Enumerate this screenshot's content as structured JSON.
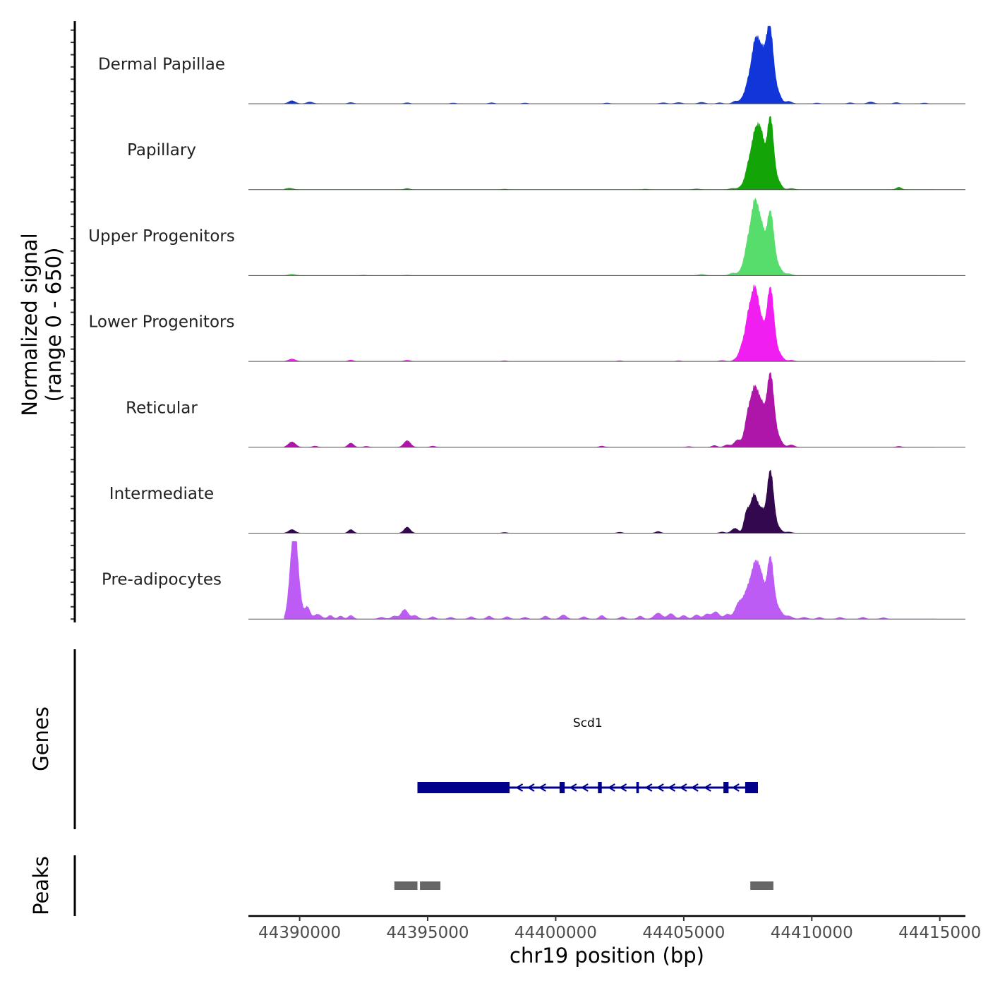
{
  "chart_data": {
    "type": "area",
    "title": "",
    "chromosome": "chr19",
    "xlabel": "chr19 position (bp)",
    "xlim": [
      44388000,
      44416000
    ],
    "x_ticks": [
      44390000,
      44395000,
      44400000,
      44405000,
      44410000,
      44415000
    ],
    "x_tick_labels": [
      "44390000",
      "44395000",
      "44400000",
      "44405000",
      "44410000",
      "44415000"
    ],
    "ylabel_line1": "Normalized signal",
    "ylabel_line2": "(range 0 - 650)",
    "ylim": [
      0,
      650
    ],
    "coverage_series": [
      {
        "name": "Dermal Papillae",
        "color": "#1035d8",
        "peaks": [
          [
            44389700,
            25,
            130
          ],
          [
            44390400,
            15,
            120
          ],
          [
            44392000,
            10,
            100
          ],
          [
            44394200,
            8,
            100
          ],
          [
            44396000,
            6,
            100
          ],
          [
            44397500,
            8,
            100
          ],
          [
            44398800,
            6,
            100
          ],
          [
            44402000,
            6,
            100
          ],
          [
            44404200,
            8,
            120
          ],
          [
            44404800,
            10,
            120
          ],
          [
            44405700,
            12,
            120
          ],
          [
            44406400,
            8,
            100
          ],
          [
            44407000,
            20,
            100
          ],
          [
            44407300,
            40,
            120
          ],
          [
            44407500,
            110,
            110
          ],
          [
            44407800,
            520,
            160
          ],
          [
            44408050,
            250,
            120
          ],
          [
            44408350,
            650,
            150
          ],
          [
            44408700,
            70,
            120
          ],
          [
            44409100,
            20,
            120
          ],
          [
            44410200,
            6,
            100
          ],
          [
            44411500,
            8,
            100
          ],
          [
            44412300,
            15,
            120
          ],
          [
            44413300,
            10,
            100
          ],
          [
            44414400,
            6,
            100
          ]
        ]
      },
      {
        "name": "Papillary",
        "color": "#13a507",
        "peaks": [
          [
            44389600,
            12,
            140
          ],
          [
            44394200,
            10,
            100
          ],
          [
            44398000,
            4,
            100
          ],
          [
            44403500,
            4,
            100
          ],
          [
            44405500,
            6,
            120
          ],
          [
            44406900,
            10,
            120
          ],
          [
            44407300,
            30,
            140
          ],
          [
            44407500,
            110,
            110
          ],
          [
            44407800,
            480,
            170
          ],
          [
            44408050,
            300,
            120
          ],
          [
            44408380,
            600,
            130
          ],
          [
            44408700,
            60,
            120
          ],
          [
            44409200,
            10,
            120
          ],
          [
            44413400,
            20,
            100
          ]
        ]
      },
      {
        "name": "Upper Progenitors",
        "color": "#57dd6c",
        "peaks": [
          [
            44389700,
            12,
            140
          ],
          [
            44392500,
            4,
            100
          ],
          [
            44394200,
            4,
            100
          ],
          [
            44405700,
            10,
            140
          ],
          [
            44406900,
            20,
            120
          ],
          [
            44407300,
            50,
            140
          ],
          [
            44407500,
            200,
            120
          ],
          [
            44407780,
            600,
            150
          ],
          [
            44408050,
            300,
            120
          ],
          [
            44408380,
            530,
            140
          ],
          [
            44408720,
            60,
            130
          ],
          [
            44409100,
            15,
            120
          ]
        ]
      },
      {
        "name": "Lower Progenitors",
        "color": "#f01ef0",
        "peaks": [
          [
            44389700,
            20,
            140
          ],
          [
            44392000,
            12,
            100
          ],
          [
            44394200,
            10,
            120
          ],
          [
            44398000,
            6,
            100
          ],
          [
            44402500,
            6,
            100
          ],
          [
            44404800,
            6,
            100
          ],
          [
            44406500,
            8,
            120
          ],
          [
            44407050,
            20,
            110
          ],
          [
            44407250,
            90,
            100
          ],
          [
            44407500,
            300,
            130
          ],
          [
            44407780,
            580,
            150
          ],
          [
            44408050,
            220,
            120
          ],
          [
            44408380,
            610,
            140
          ],
          [
            44408720,
            60,
            140
          ],
          [
            44409200,
            10,
            120
          ]
        ]
      },
      {
        "name": "Reticular",
        "color": "#ad16a9",
        "peaks": [
          [
            44389700,
            45,
            140
          ],
          [
            44390600,
            10,
            100
          ],
          [
            44392000,
            35,
            110
          ],
          [
            44392600,
            8,
            100
          ],
          [
            44394200,
            55,
            130
          ],
          [
            44395200,
            10,
            100
          ],
          [
            44401800,
            10,
            100
          ],
          [
            44405200,
            6,
            100
          ],
          [
            44406200,
            15,
            100
          ],
          [
            44406700,
            20,
            120
          ],
          [
            44407100,
            60,
            130
          ],
          [
            44407500,
            230,
            130
          ],
          [
            44407780,
            470,
            150
          ],
          [
            44408050,
            260,
            120
          ],
          [
            44408380,
            610,
            140
          ],
          [
            44408700,
            70,
            140
          ],
          [
            44409200,
            20,
            120
          ],
          [
            44413400,
            8,
            100
          ]
        ]
      },
      {
        "name": "Intermediate",
        "color": "#33084f",
        "peaks": [
          [
            44389700,
            30,
            130
          ],
          [
            44392000,
            30,
            100
          ],
          [
            44394200,
            50,
            120
          ],
          [
            44398000,
            6,
            100
          ],
          [
            44402500,
            8,
            100
          ],
          [
            44404000,
            14,
            100
          ],
          [
            44406500,
            10,
            100
          ],
          [
            44407000,
            40,
            130
          ],
          [
            44407450,
            150,
            100
          ],
          [
            44407750,
            320,
            150
          ],
          [
            44408050,
            150,
            110
          ],
          [
            44408380,
            520,
            130
          ],
          [
            44408700,
            40,
            120
          ],
          [
            44409100,
            10,
            120
          ]
        ]
      },
      {
        "name": "Pre-adipocytes",
        "color": "#bd5cf4",
        "peaks": [
          [
            44389650,
            300,
            110
          ],
          [
            44389800,
            570,
            100
          ],
          [
            44389950,
            250,
            120
          ],
          [
            44390300,
            100,
            100
          ],
          [
            44390700,
            40,
            150
          ],
          [
            44391200,
            30,
            100
          ],
          [
            44391600,
            25,
            100
          ],
          [
            44392000,
            30,
            100
          ],
          [
            44393200,
            15,
            120
          ],
          [
            44393700,
            25,
            120
          ],
          [
            44394100,
            80,
            130
          ],
          [
            44394500,
            30,
            120
          ],
          [
            44395200,
            20,
            100
          ],
          [
            44395900,
            15,
            100
          ],
          [
            44396700,
            20,
            100
          ],
          [
            44397400,
            25,
            100
          ],
          [
            44398100,
            20,
            100
          ],
          [
            44398800,
            15,
            100
          ],
          [
            44399600,
            25,
            100
          ],
          [
            44400300,
            35,
            120
          ],
          [
            44401100,
            20,
            100
          ],
          [
            44401800,
            30,
            100
          ],
          [
            44402600,
            20,
            100
          ],
          [
            44403300,
            25,
            100
          ],
          [
            44404000,
            50,
            150
          ],
          [
            44404500,
            45,
            130
          ],
          [
            44405000,
            30,
            120
          ],
          [
            44405500,
            35,
            120
          ],
          [
            44405900,
            40,
            120
          ],
          [
            44406250,
            60,
            140
          ],
          [
            44406700,
            40,
            120
          ],
          [
            44407150,
            130,
            150
          ],
          [
            44407480,
            200,
            150
          ],
          [
            44407800,
            440,
            160
          ],
          [
            44408050,
            230,
            120
          ],
          [
            44408380,
            510,
            130
          ],
          [
            44408700,
            80,
            140
          ],
          [
            44409100,
            25,
            140
          ],
          [
            44409700,
            15,
            120
          ],
          [
            44410300,
            15,
            100
          ],
          [
            44411100,
            15,
            100
          ],
          [
            44412000,
            15,
            100
          ],
          [
            44412800,
            12,
            100
          ]
        ]
      }
    ],
    "genes": [
      {
        "name": "Scd1",
        "start": 44394600,
        "end": 44407900,
        "strand": "-",
        "color": "#00008b",
        "blocks": [
          [
            44394600,
            44398200
          ],
          [
            44400150,
            44400350
          ],
          [
            44401650,
            44401800
          ],
          [
            44403150,
            44403250
          ],
          [
            44406550,
            44406750
          ],
          [
            44407400,
            44407900
          ]
        ],
        "arrow_positions": [
          44398600,
          44399050,
          44399500,
          44400700,
          44401150,
          44402200,
          44402650,
          44403650,
          44404100,
          44404550,
          44405000,
          44405450,
          44405950,
          44407050
        ]
      }
    ],
    "genes_track_label": "Genes",
    "peaks_track_label": "Peaks",
    "peak_regions": [
      [
        44393700,
        44394600
      ],
      [
        44394700,
        44395500
      ],
      [
        44407600,
        44408500
      ]
    ],
    "peak_color": "#666666"
  }
}
